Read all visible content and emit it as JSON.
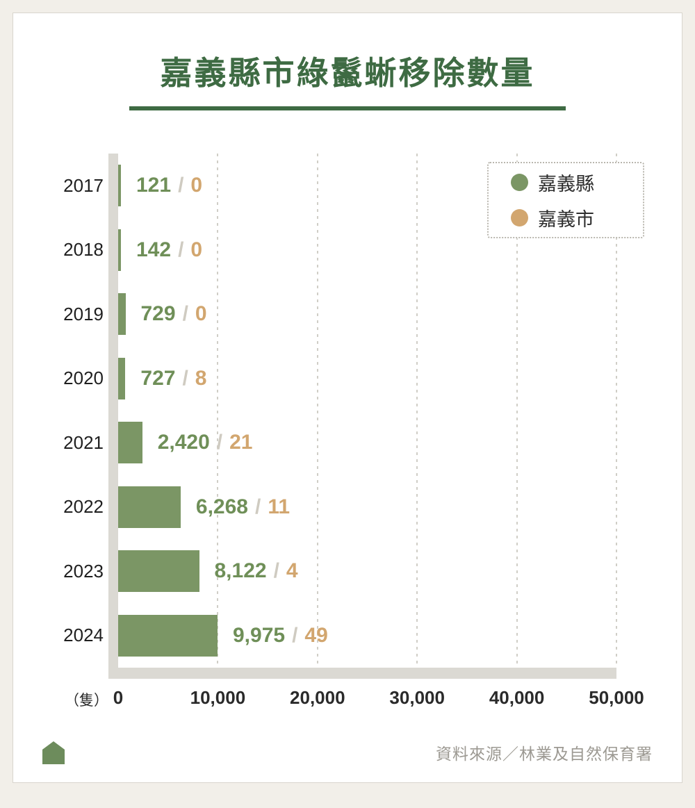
{
  "page": {
    "title": "嘉義縣市綠鬣蜥移除數量",
    "unit_label": "（隻）",
    "source": "資料來源／林業及自然保育署"
  },
  "colors": {
    "title_green": "#3e6b43",
    "bar_green": "#7b9665",
    "value_green": "#6f8f58",
    "city_tan": "#d2a66f",
    "axis_gray": "#dbd9d3",
    "background": "#f2efe9"
  },
  "legend": {
    "items": [
      {
        "label": "嘉義縣",
        "color": "#7b9665"
      },
      {
        "label": "嘉義市",
        "color": "#d2a66f"
      }
    ]
  },
  "chart_data": {
    "type": "bar",
    "orientation": "horizontal",
    "title": "嘉義縣市綠鬣蜥移除數量",
    "xlabel": "（隻）",
    "categories": [
      "2017",
      "2018",
      "2019",
      "2020",
      "2021",
      "2022",
      "2023",
      "2024"
    ],
    "series": [
      {
        "name": "嘉義縣",
        "values": [
          121,
          142,
          729,
          727,
          2420,
          6268,
          8122,
          9975
        ]
      },
      {
        "name": "嘉義市",
        "values": [
          0,
          0,
          0,
          8,
          21,
          11,
          4,
          49
        ]
      }
    ],
    "labels_county": [
      "121",
      "142",
      "729",
      "727",
      "2,420",
      "6,268",
      "8,122",
      "9,975"
    ],
    "labels_city": [
      "0",
      "0",
      "0",
      "8",
      "21",
      "11",
      "4",
      "49"
    ],
    "xlim": [
      0,
      50000
    ],
    "x_ticks": [
      "0",
      "10,000",
      "20,000",
      "30,000",
      "40,000",
      "50,000"
    ],
    "grid": "vertical-dotted",
    "legend_position": "top-right"
  }
}
